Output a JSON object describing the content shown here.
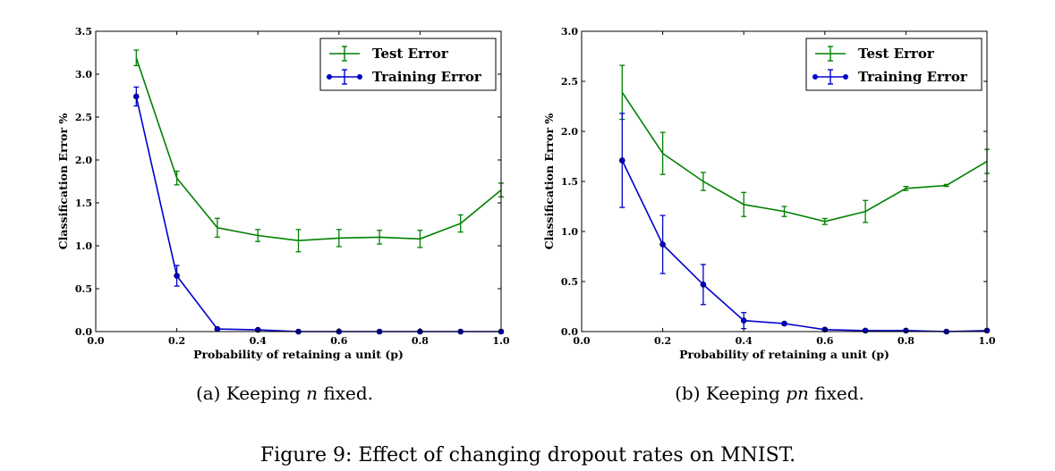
{
  "figure_caption": "Figure 9: Effect of changing dropout rates on MNIST.",
  "colors": {
    "test": "#008000",
    "train": "#0000cc"
  },
  "chart_data": [
    {
      "type": "line",
      "caption_prefix": "(a) Keeping ",
      "caption_math": "n",
      "caption_suffix": " fixed.",
      "xlabel": "Probability of retaining a unit (p)",
      "ylabel": "Classification Error %",
      "xlim": [
        0.0,
        1.0
      ],
      "ylim": [
        0.0,
        3.5
      ],
      "xticks": [
        "0.0",
        "0.2",
        "0.4",
        "0.6",
        "0.8",
        "1.0"
      ],
      "yticks": [
        "0.0",
        "0.5",
        "1.0",
        "1.5",
        "2.0",
        "2.5",
        "3.0",
        "3.5"
      ],
      "legend_position": "top-right",
      "x": [
        0.1,
        0.2,
        0.3,
        0.4,
        0.5,
        0.6,
        0.7,
        0.8,
        0.9,
        1.0
      ],
      "series": [
        {
          "name": "Test Error",
          "marker": "none",
          "values": [
            3.19,
            1.79,
            1.21,
            1.12,
            1.06,
            1.09,
            1.1,
            1.08,
            1.26,
            1.65
          ],
          "errors": [
            0.09,
            0.08,
            0.11,
            0.07,
            0.13,
            0.1,
            0.08,
            0.1,
            0.1,
            0.08
          ]
        },
        {
          "name": "Training Error",
          "marker": "circle",
          "values": [
            2.74,
            0.65,
            0.03,
            0.02,
            0.0,
            0.0,
            0.0,
            0.0,
            0.0,
            0.0
          ],
          "errors": [
            0.11,
            0.12,
            0.01,
            0.01,
            0.0,
            0.0,
            0.0,
            0.0,
            0.0,
            0.0
          ]
        }
      ]
    },
    {
      "type": "line",
      "caption_prefix": "(b) Keeping ",
      "caption_math": "pn",
      "caption_suffix": " fixed.",
      "xlabel": "Probability of retaining a unit (p)",
      "ylabel": "Classification Error %",
      "xlim": [
        0.0,
        1.0
      ],
      "ylim": [
        0.0,
        3.0
      ],
      "xticks": [
        "0.0",
        "0.2",
        "0.4",
        "0.6",
        "0.8",
        "1.0"
      ],
      "yticks": [
        "0.0",
        "0.5",
        "1.0",
        "1.5",
        "2.0",
        "2.5",
        "3.0"
      ],
      "legend_position": "top-right",
      "x": [
        0.1,
        0.2,
        0.3,
        0.4,
        0.5,
        0.6,
        0.7,
        0.8,
        0.9,
        1.0
      ],
      "series": [
        {
          "name": "Test Error",
          "marker": "none",
          "values": [
            2.39,
            1.78,
            1.5,
            1.27,
            1.2,
            1.1,
            1.2,
            1.43,
            1.46,
            1.7
          ],
          "errors": [
            0.27,
            0.21,
            0.09,
            0.12,
            0.05,
            0.03,
            0.11,
            0.02,
            0.01,
            0.12
          ]
        },
        {
          "name": "Training Error",
          "marker": "circle",
          "values": [
            1.71,
            0.87,
            0.47,
            0.11,
            0.08,
            0.02,
            0.01,
            0.01,
            0.0,
            0.01
          ],
          "errors": [
            0.47,
            0.29,
            0.2,
            0.08,
            0.01,
            0.01,
            0.01,
            0.0,
            0.0,
            0.0
          ]
        }
      ]
    }
  ]
}
